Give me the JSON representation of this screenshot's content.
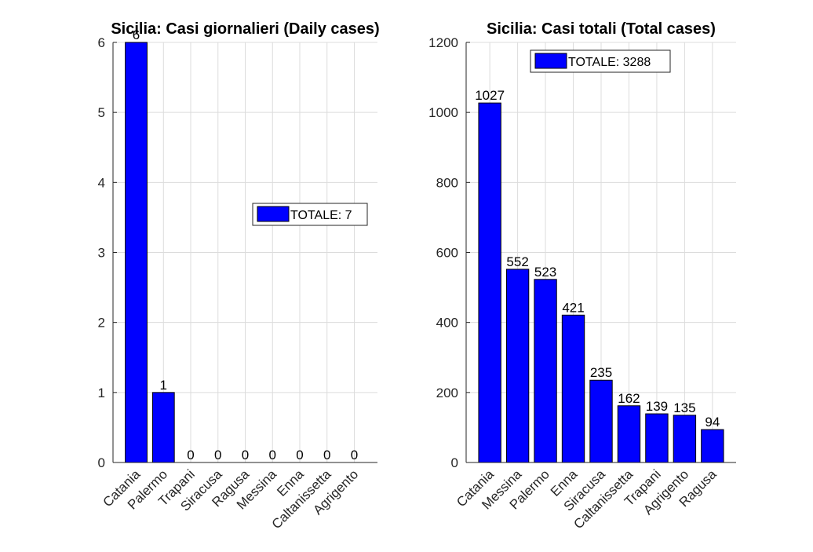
{
  "chart_data": [
    {
      "type": "bar",
      "title": "Sicilia: Casi giornalieri (Daily cases)",
      "categories": [
        "Catania",
        "Palermo",
        "Trapani",
        "Siracusa",
        "Ragusa",
        "Messina",
        "Enna",
        "Caltanissetta",
        "Agrigento"
      ],
      "values": [
        6,
        1,
        0,
        0,
        0,
        0,
        0,
        0,
        0
      ],
      "ylim": [
        0,
        6
      ],
      "yticks": [
        0,
        1,
        2,
        3,
        4,
        5,
        6
      ],
      "legend": "TOTALE: 7",
      "legend_position": "right-center",
      "grid": true,
      "bar_color": "#0000ff"
    },
    {
      "type": "bar",
      "title": "Sicilia: Casi totali (Total cases)",
      "categories": [
        "Catania",
        "Messina",
        "Palermo",
        "Enna",
        "Siracusa",
        "Caltanissetta",
        "Trapani",
        "Agrigento",
        "Ragusa"
      ],
      "values": [
        1027,
        552,
        523,
        421,
        235,
        162,
        139,
        135,
        94
      ],
      "ylim": [
        0,
        1200
      ],
      "yticks": [
        0,
        200,
        400,
        600,
        800,
        1000,
        1200
      ],
      "legend": "TOTALE: 3288",
      "legend_position": "top-center",
      "grid": true,
      "bar_color": "#0000ff"
    }
  ]
}
